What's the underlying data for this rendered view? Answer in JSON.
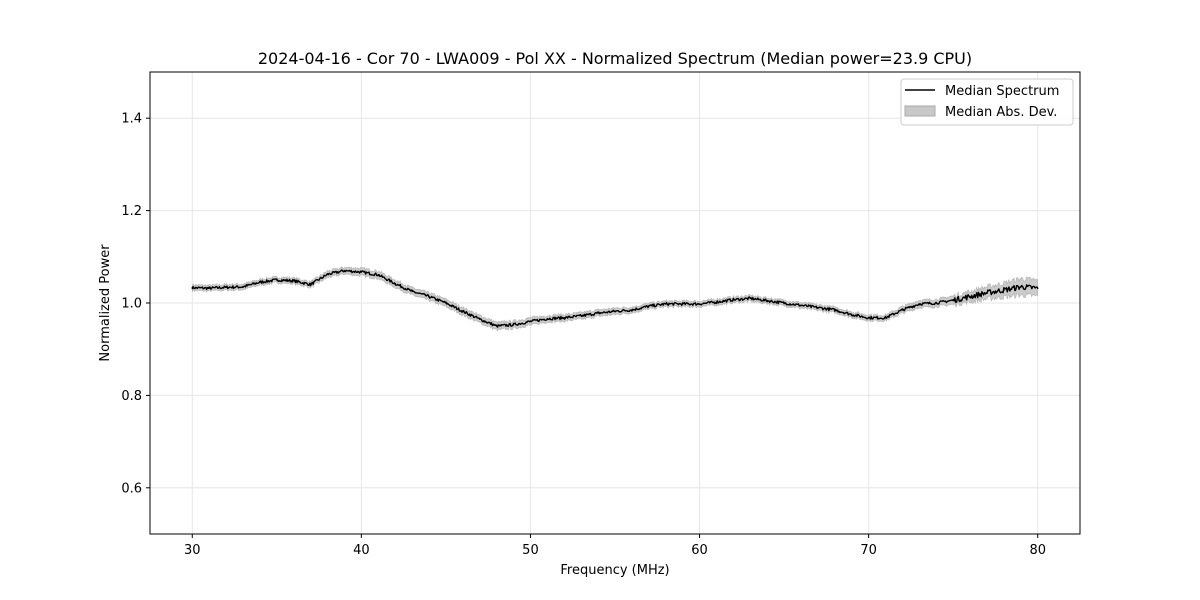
{
  "chart_data": {
    "type": "line",
    "title": "2024-04-16 - Cor 70 - LWA009 - Pol XX - Normalized Spectrum (Median power=23.9 CPU)",
    "xlabel": "Frequency (MHz)",
    "ylabel": "Normalized Power",
    "xlim": [
      27.5,
      82.5
    ],
    "ylim": [
      0.5,
      1.5
    ],
    "xticks": [
      30,
      40,
      50,
      60,
      70,
      80
    ],
    "xtick_labels": [
      "30",
      "40",
      "50",
      "60",
      "70",
      "80"
    ],
    "yticks": [
      0.6,
      0.8,
      1.0,
      1.2,
      1.4
    ],
    "ytick_labels": [
      "0.6",
      "0.8",
      "1.0",
      "1.2",
      "1.4"
    ],
    "grid": true,
    "legend_position": "top-right",
    "series": [
      {
        "name": "Median Spectrum",
        "kind": "line",
        "color": "#000000",
        "x": [
          30,
          31,
          32,
          33,
          34,
          35,
          36,
          37,
          38,
          39,
          40,
          41,
          42,
          43,
          44,
          45,
          46,
          47,
          48,
          49,
          50,
          51,
          52,
          53,
          54,
          55,
          56,
          57,
          58,
          59,
          60,
          61,
          62,
          63,
          64,
          65,
          66,
          67,
          68,
          69,
          70,
          71,
          72,
          73,
          74,
          75,
          76,
          77,
          78,
          79,
          80
        ],
        "values": [
          1.033,
          1.032,
          1.034,
          1.035,
          1.045,
          1.05,
          1.048,
          1.04,
          1.062,
          1.07,
          1.067,
          1.061,
          1.042,
          1.025,
          1.014,
          1.0,
          0.982,
          0.965,
          0.95,
          0.953,
          0.96,
          0.966,
          0.968,
          0.972,
          0.978,
          0.982,
          0.985,
          0.993,
          0.998,
          0.998,
          0.998,
          1.002,
          1.007,
          1.01,
          1.005,
          1.0,
          0.995,
          0.99,
          0.985,
          0.975,
          0.968,
          0.968,
          0.985,
          0.998,
          1.0,
          1.006,
          1.014,
          1.022,
          1.028,
          1.035,
          1.032
        ]
      },
      {
        "name": "Median Abs. Dev.",
        "kind": "band",
        "color": "#c8c8c8",
        "x": [
          30,
          31,
          32,
          33,
          34,
          35,
          36,
          37,
          38,
          39,
          40,
          41,
          42,
          43,
          44,
          45,
          46,
          47,
          48,
          49,
          50,
          51,
          52,
          53,
          54,
          55,
          56,
          57,
          58,
          59,
          60,
          61,
          62,
          63,
          64,
          65,
          66,
          67,
          68,
          69,
          70,
          71,
          72,
          73,
          74,
          75,
          76,
          77,
          78,
          79,
          80
        ],
        "halfwidth": [
          0.006,
          0.006,
          0.006,
          0.006,
          0.006,
          0.006,
          0.006,
          0.006,
          0.007,
          0.007,
          0.008,
          0.008,
          0.008,
          0.008,
          0.008,
          0.008,
          0.008,
          0.008,
          0.008,
          0.008,
          0.008,
          0.007,
          0.007,
          0.007,
          0.007,
          0.007,
          0.006,
          0.006,
          0.006,
          0.006,
          0.006,
          0.006,
          0.006,
          0.006,
          0.006,
          0.006,
          0.006,
          0.006,
          0.006,
          0.006,
          0.006,
          0.006,
          0.007,
          0.008,
          0.008,
          0.009,
          0.011,
          0.013,
          0.015,
          0.018,
          0.017
        ]
      }
    ]
  }
}
